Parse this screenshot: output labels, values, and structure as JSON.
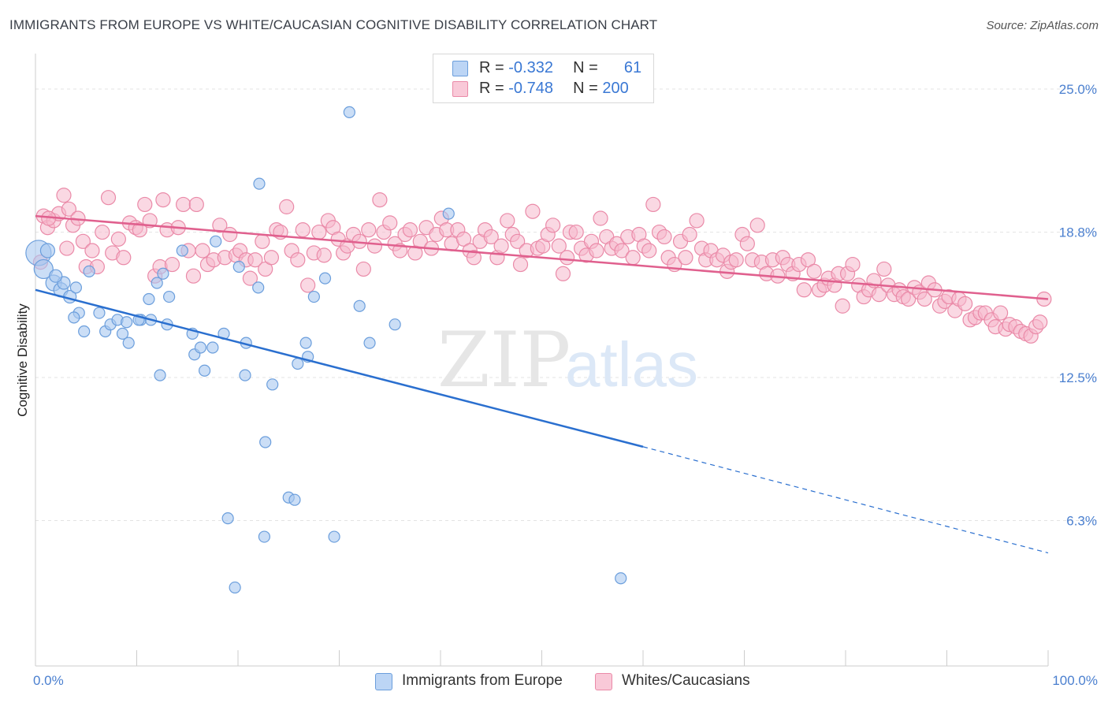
{
  "header": {
    "title": "IMMIGRANTS FROM EUROPE VS WHITE/CAUCASIAN COGNITIVE DISABILITY CORRELATION CHART",
    "source": "Source: ZipAtlas.com"
  },
  "watermark": {
    "zip": "ZIP",
    "atlas": "atlas"
  },
  "legend_top": {
    "rows": [
      {
        "r_label": "R =",
        "r_value": "-0.332",
        "n_label": "N =",
        "n_value": "61"
      },
      {
        "r_label": "R =",
        "r_value": "-0.748",
        "n_label": "N =",
        "n_value": "200"
      }
    ]
  },
  "legend_bottom": {
    "items": [
      "Immigrants from Europe",
      "Whites/Caucasians"
    ]
  },
  "colors": {
    "blue_fill": "#a9c8f0",
    "blue_stroke": "#6b9edc",
    "blue_line": "#2a6fcf",
    "pink_fill": "#f6b8cc",
    "pink_stroke": "#ea8aa8",
    "pink_line": "#e0608e",
    "grid": "#e3e3e3",
    "tick_label": "#4a7fcf"
  },
  "chart_data": {
    "type": "scatter",
    "title": "IMMIGRANTS FROM EUROPE VS WHITE/CAUCASIAN COGNITIVE DISABILITY CORRELATION CHART",
    "xlabel": "",
    "ylabel": "Cognitive Disability",
    "xlim": [
      0,
      100
    ],
    "ylim": [
      0,
      26.3
    ],
    "x_tick_labels": [
      "0.0%",
      "100.0%"
    ],
    "y_ticks": [
      6.3,
      12.5,
      18.8,
      25.0
    ],
    "y_tick_labels": [
      "6.3%",
      "12.5%",
      "18.8%",
      "25.0%"
    ],
    "grid": true,
    "legend_position": "top-center",
    "series": [
      {
        "name": "Immigrants from Europe",
        "color": "#6b9edc",
        "r": -0.332,
        "n": 61,
        "trend": {
          "x0": 0,
          "y0": 16.3,
          "x1": 60,
          "y1": 9.5,
          "dashed_to_x": 100,
          "dashed_to_y": 4.9
        },
        "points": [
          [
            0.3,
            17.9,
            16
          ],
          [
            0.8,
            17.2,
            12
          ],
          [
            1.8,
            16.6,
            10
          ],
          [
            2.5,
            16.3,
            9
          ],
          [
            3.4,
            16.0,
            8
          ],
          [
            2.8,
            16.6,
            8
          ],
          [
            5.3,
            17.1,
            7
          ],
          [
            4.3,
            15.3,
            7
          ],
          [
            3.8,
            15.1,
            7
          ],
          [
            6.3,
            15.3,
            7
          ],
          [
            4.8,
            14.5,
            7
          ],
          [
            6.9,
            14.5,
            7
          ],
          [
            7.4,
            14.8,
            7
          ],
          [
            8.1,
            15.0,
            7
          ],
          [
            9.0,
            14.9,
            7
          ],
          [
            8.6,
            14.4,
            7
          ],
          [
            9.2,
            14.0,
            7
          ],
          [
            10.4,
            15.0,
            7
          ],
          [
            11.2,
            15.9,
            7
          ],
          [
            12.0,
            16.6,
            7
          ],
          [
            12.6,
            17.0,
            7
          ],
          [
            13.2,
            16.0,
            7
          ],
          [
            11.4,
            15.0,
            7
          ],
          [
            10.2,
            15.0,
            7
          ],
          [
            14.5,
            18.0,
            7
          ],
          [
            13.0,
            14.8,
            7
          ],
          [
            15.5,
            14.4,
            7
          ],
          [
            15.7,
            13.5,
            7
          ],
          [
            16.3,
            13.8,
            7
          ],
          [
            17.5,
            13.8,
            7
          ],
          [
            17.8,
            18.4,
            7
          ],
          [
            18.6,
            14.4,
            7
          ],
          [
            20.1,
            17.3,
            7
          ],
          [
            20.8,
            14.0,
            7
          ],
          [
            22.0,
            16.4,
            7
          ],
          [
            22.1,
            20.9,
            7
          ],
          [
            27.5,
            16.0,
            7
          ],
          [
            28.6,
            16.8,
            7
          ],
          [
            26.7,
            14.0,
            7
          ],
          [
            26.9,
            13.4,
            7
          ],
          [
            25.9,
            13.1,
            7
          ],
          [
            32.0,
            15.6,
            7
          ],
          [
            33.0,
            14.0,
            7
          ],
          [
            35.5,
            14.8,
            7
          ],
          [
            40.8,
            19.6,
            7
          ],
          [
            12.3,
            12.6,
            7
          ],
          [
            16.7,
            12.8,
            7
          ],
          [
            20.7,
            12.6,
            7
          ],
          [
            23.4,
            12.2,
            7
          ],
          [
            22.7,
            9.7,
            7
          ],
          [
            25.0,
            7.3,
            7
          ],
          [
            25.6,
            7.2,
            7
          ],
          [
            19.0,
            6.4,
            7
          ],
          [
            22.6,
            5.6,
            7
          ],
          [
            29.5,
            5.6,
            7
          ],
          [
            19.7,
            3.4,
            7
          ],
          [
            57.8,
            3.8,
            7
          ],
          [
            31.0,
            24.0,
            7
          ],
          [
            2.0,
            16.9,
            8
          ],
          [
            1.2,
            18.0,
            9
          ],
          [
            4.0,
            16.4,
            7
          ]
        ]
      },
      {
        "name": "Whites/Caucasians",
        "color": "#ea8aa8",
        "r": -0.748,
        "n": 200,
        "trend": {
          "x0": 0,
          "y0": 19.5,
          "x1": 100,
          "y1": 15.9
        },
        "points": [
          [
            0.5,
            17.5
          ],
          [
            0.8,
            19.5
          ],
          [
            1.2,
            19.0
          ],
          [
            1.8,
            19.3
          ],
          [
            2.3,
            19.6
          ],
          [
            2.8,
            20.4
          ],
          [
            3.3,
            19.8
          ],
          [
            3.7,
            19.1
          ],
          [
            4.2,
            19.4
          ],
          [
            4.7,
            18.4
          ],
          [
            5.0,
            17.3
          ],
          [
            5.6,
            18.0
          ],
          [
            6.1,
            17.3
          ],
          [
            6.6,
            18.8
          ],
          [
            7.2,
            20.3
          ],
          [
            7.6,
            17.9
          ],
          [
            8.2,
            18.5
          ],
          [
            8.7,
            17.7
          ],
          [
            9.3,
            19.2
          ],
          [
            9.9,
            19.0
          ],
          [
            10.3,
            18.9
          ],
          [
            10.8,
            20.0
          ],
          [
            11.3,
            19.3
          ],
          [
            11.8,
            16.9
          ],
          [
            12.3,
            17.3
          ],
          [
            12.6,
            20.2
          ],
          [
            13.0,
            18.9
          ],
          [
            13.5,
            17.4
          ],
          [
            14.1,
            19.0
          ],
          [
            14.6,
            20.0
          ],
          [
            15.1,
            18.0
          ],
          [
            15.6,
            16.9
          ],
          [
            15.9,
            20.0
          ],
          [
            16.5,
            18.0
          ],
          [
            17.0,
            17.4
          ],
          [
            17.6,
            17.6
          ],
          [
            18.2,
            19.1
          ],
          [
            18.7,
            17.7
          ],
          [
            19.2,
            18.7
          ],
          [
            19.8,
            17.8
          ],
          [
            20.2,
            18.0
          ],
          [
            20.8,
            17.6
          ],
          [
            21.2,
            16.8
          ],
          [
            21.7,
            17.6
          ],
          [
            22.4,
            18.4
          ],
          [
            22.7,
            17.2
          ],
          [
            23.3,
            17.7
          ],
          [
            23.8,
            18.9
          ],
          [
            24.2,
            18.8
          ],
          [
            24.8,
            19.9
          ],
          [
            25.3,
            18.0
          ],
          [
            25.9,
            17.6
          ],
          [
            26.4,
            18.9
          ],
          [
            26.9,
            16.5
          ],
          [
            27.5,
            17.9
          ],
          [
            28.0,
            18.8
          ],
          [
            28.5,
            17.8
          ],
          [
            28.9,
            19.3
          ],
          [
            29.4,
            19.0
          ],
          [
            29.9,
            18.5
          ],
          [
            30.4,
            17.9
          ],
          [
            30.8,
            18.2
          ],
          [
            31.4,
            18.7
          ],
          [
            32.0,
            18.4
          ],
          [
            32.4,
            17.2
          ],
          [
            32.9,
            18.9
          ],
          [
            33.5,
            18.2
          ],
          [
            34.0,
            20.2
          ],
          [
            34.4,
            18.8
          ],
          [
            35.0,
            19.2
          ],
          [
            35.5,
            18.3
          ],
          [
            36.0,
            18.0
          ],
          [
            36.5,
            18.7
          ],
          [
            37.0,
            18.9
          ],
          [
            37.5,
            17.9
          ],
          [
            38.0,
            18.4
          ],
          [
            38.6,
            19.0
          ],
          [
            39.1,
            18.1
          ],
          [
            39.6,
            18.7
          ],
          [
            40.1,
            19.4
          ],
          [
            40.6,
            18.9
          ],
          [
            41.1,
            18.3
          ],
          [
            41.7,
            18.9
          ],
          [
            42.3,
            18.5
          ],
          [
            42.9,
            18.0
          ],
          [
            43.3,
            17.7
          ],
          [
            43.9,
            18.4
          ],
          [
            44.4,
            18.9
          ],
          [
            45.0,
            18.6
          ],
          [
            45.6,
            17.7
          ],
          [
            46.0,
            18.2
          ],
          [
            46.6,
            19.3
          ],
          [
            47.1,
            18.7
          ],
          [
            47.6,
            18.4
          ],
          [
            47.9,
            17.4
          ],
          [
            48.5,
            18.0
          ],
          [
            49.1,
            19.7
          ],
          [
            49.6,
            18.1
          ],
          [
            50.1,
            18.2
          ],
          [
            50.6,
            18.7
          ],
          [
            51.1,
            19.1
          ],
          [
            51.7,
            18.2
          ],
          [
            52.1,
            17.0
          ],
          [
            52.8,
            18.8
          ],
          [
            53.4,
            18.8
          ],
          [
            53.9,
            18.1
          ],
          [
            54.4,
            17.8
          ],
          [
            54.9,
            18.4
          ],
          [
            55.4,
            18.0
          ],
          [
            55.8,
            19.4
          ],
          [
            56.4,
            18.6
          ],
          [
            56.9,
            18.1
          ],
          [
            57.4,
            18.3
          ],
          [
            57.9,
            18.0
          ],
          [
            58.5,
            18.6
          ],
          [
            59.0,
            17.7
          ],
          [
            59.6,
            18.7
          ],
          [
            60.1,
            18.2
          ],
          [
            60.6,
            18.0
          ],
          [
            61.0,
            20.0
          ],
          [
            61.6,
            18.8
          ],
          [
            62.1,
            18.6
          ],
          [
            62.5,
            17.7
          ],
          [
            63.1,
            17.4
          ],
          [
            63.7,
            18.4
          ],
          [
            64.2,
            17.7
          ],
          [
            64.6,
            18.7
          ],
          [
            65.3,
            19.3
          ],
          [
            65.8,
            18.1
          ],
          [
            66.2,
            17.6
          ],
          [
            66.7,
            18.0
          ],
          [
            67.3,
            17.6
          ],
          [
            67.9,
            17.8
          ],
          [
            68.3,
            17.1
          ],
          [
            68.7,
            17.5
          ],
          [
            69.2,
            17.6
          ],
          [
            69.8,
            18.7
          ],
          [
            70.3,
            18.3
          ],
          [
            70.8,
            17.6
          ],
          [
            71.3,
            19.1
          ],
          [
            71.7,
            17.5
          ],
          [
            72.2,
            17.0
          ],
          [
            72.8,
            17.6
          ],
          [
            73.3,
            16.9
          ],
          [
            73.8,
            17.7
          ],
          [
            74.3,
            17.4
          ],
          [
            74.8,
            17.0
          ],
          [
            75.4,
            17.4
          ],
          [
            75.9,
            16.3
          ],
          [
            76.3,
            17.6
          ],
          [
            76.9,
            17.1
          ],
          [
            77.4,
            16.3
          ],
          [
            77.9,
            16.5
          ],
          [
            78.3,
            16.8
          ],
          [
            78.9,
            16.5
          ],
          [
            79.3,
            17.0
          ],
          [
            79.7,
            15.6
          ],
          [
            80.2,
            17.0
          ],
          [
            80.7,
            17.4
          ],
          [
            81.3,
            16.5
          ],
          [
            81.8,
            16.0
          ],
          [
            82.3,
            16.3
          ],
          [
            82.8,
            16.7
          ],
          [
            83.3,
            16.1
          ],
          [
            83.8,
            17.2
          ],
          [
            84.2,
            16.5
          ],
          [
            84.8,
            16.1
          ],
          [
            85.3,
            16.3
          ],
          [
            85.7,
            16.0
          ],
          [
            86.2,
            15.9
          ],
          [
            86.8,
            16.4
          ],
          [
            87.3,
            16.2
          ],
          [
            87.8,
            15.9
          ],
          [
            88.2,
            16.6
          ],
          [
            88.8,
            16.3
          ],
          [
            89.3,
            15.6
          ],
          [
            89.8,
            15.8
          ],
          [
            90.2,
            16.0
          ],
          [
            90.8,
            15.4
          ],
          [
            91.2,
            15.9
          ],
          [
            91.8,
            15.7
          ],
          [
            92.3,
            15.0
          ],
          [
            92.8,
            15.1
          ],
          [
            93.3,
            15.3
          ],
          [
            93.8,
            15.3
          ],
          [
            94.4,
            15.0
          ],
          [
            94.8,
            14.7
          ],
          [
            95.3,
            15.3
          ],
          [
            95.8,
            14.6
          ],
          [
            96.2,
            14.8
          ],
          [
            96.8,
            14.7
          ],
          [
            97.3,
            14.5
          ],
          [
            97.8,
            14.4
          ],
          [
            98.3,
            14.3
          ],
          [
            98.8,
            14.7
          ],
          [
            99.2,
            14.9
          ],
          [
            99.6,
            15.9
          ],
          [
            1.3,
            19.4
          ],
          [
            3.1,
            18.1
          ],
          [
            52.5,
            17.7
          ]
        ]
      }
    ]
  }
}
